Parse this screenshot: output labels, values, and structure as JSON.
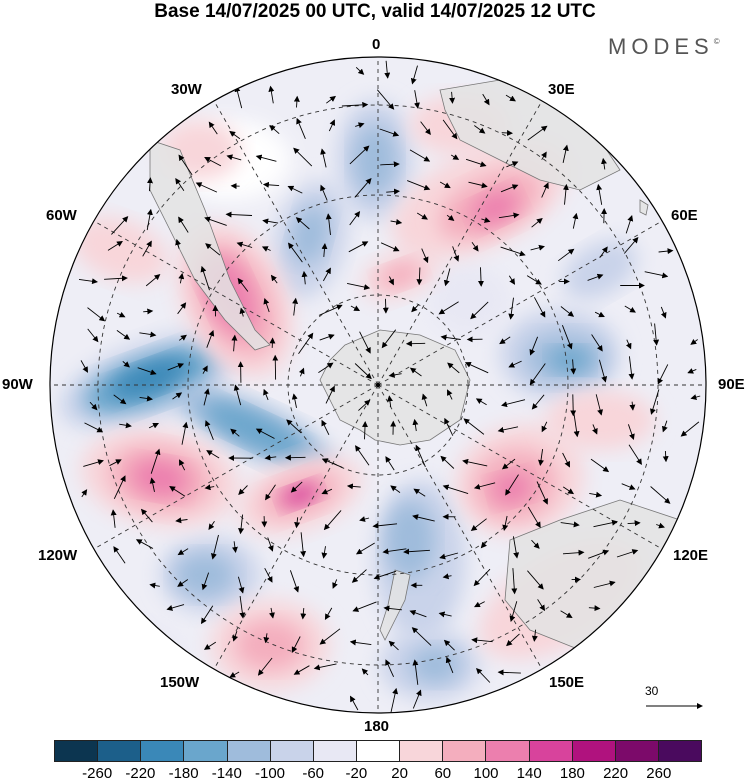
{
  "title": "Base 14/07/2025 00 UTC, valid 14/07/2025 12 UTC",
  "brand": "MODES",
  "brand_mark": "©",
  "longitude_labels": {
    "n0": "0",
    "w30": "30W",
    "e30": "30E",
    "w60": "60W",
    "e60": "60E",
    "w90": "90W",
    "e90": "90E",
    "w120": "120W",
    "e120": "120E",
    "w150": "150W",
    "e150": "150E",
    "s180": "180"
  },
  "reference_vector": "30",
  "colorbar": {
    "ticks": [
      "-260",
      "-220",
      "-180",
      "-140",
      "-100",
      "-60",
      "-20",
      "20",
      "60",
      "100",
      "140",
      "180",
      "220",
      "260"
    ],
    "colors": [
      "#0c3550",
      "#1c5f8a",
      "#3a88b8",
      "#6aa6cc",
      "#9fbcdc",
      "#c9d3ea",
      "#e8e8f4",
      "#ffffff",
      "#f8d6da",
      "#f4aebe",
      "#ec7fae",
      "#d8439c",
      "#b0127e",
      "#7c0a6a",
      "#4a0a5e"
    ]
  },
  "colors": {
    "land": "#e3e3e3",
    "coast": "#777777",
    "grid": "#333333"
  }
}
